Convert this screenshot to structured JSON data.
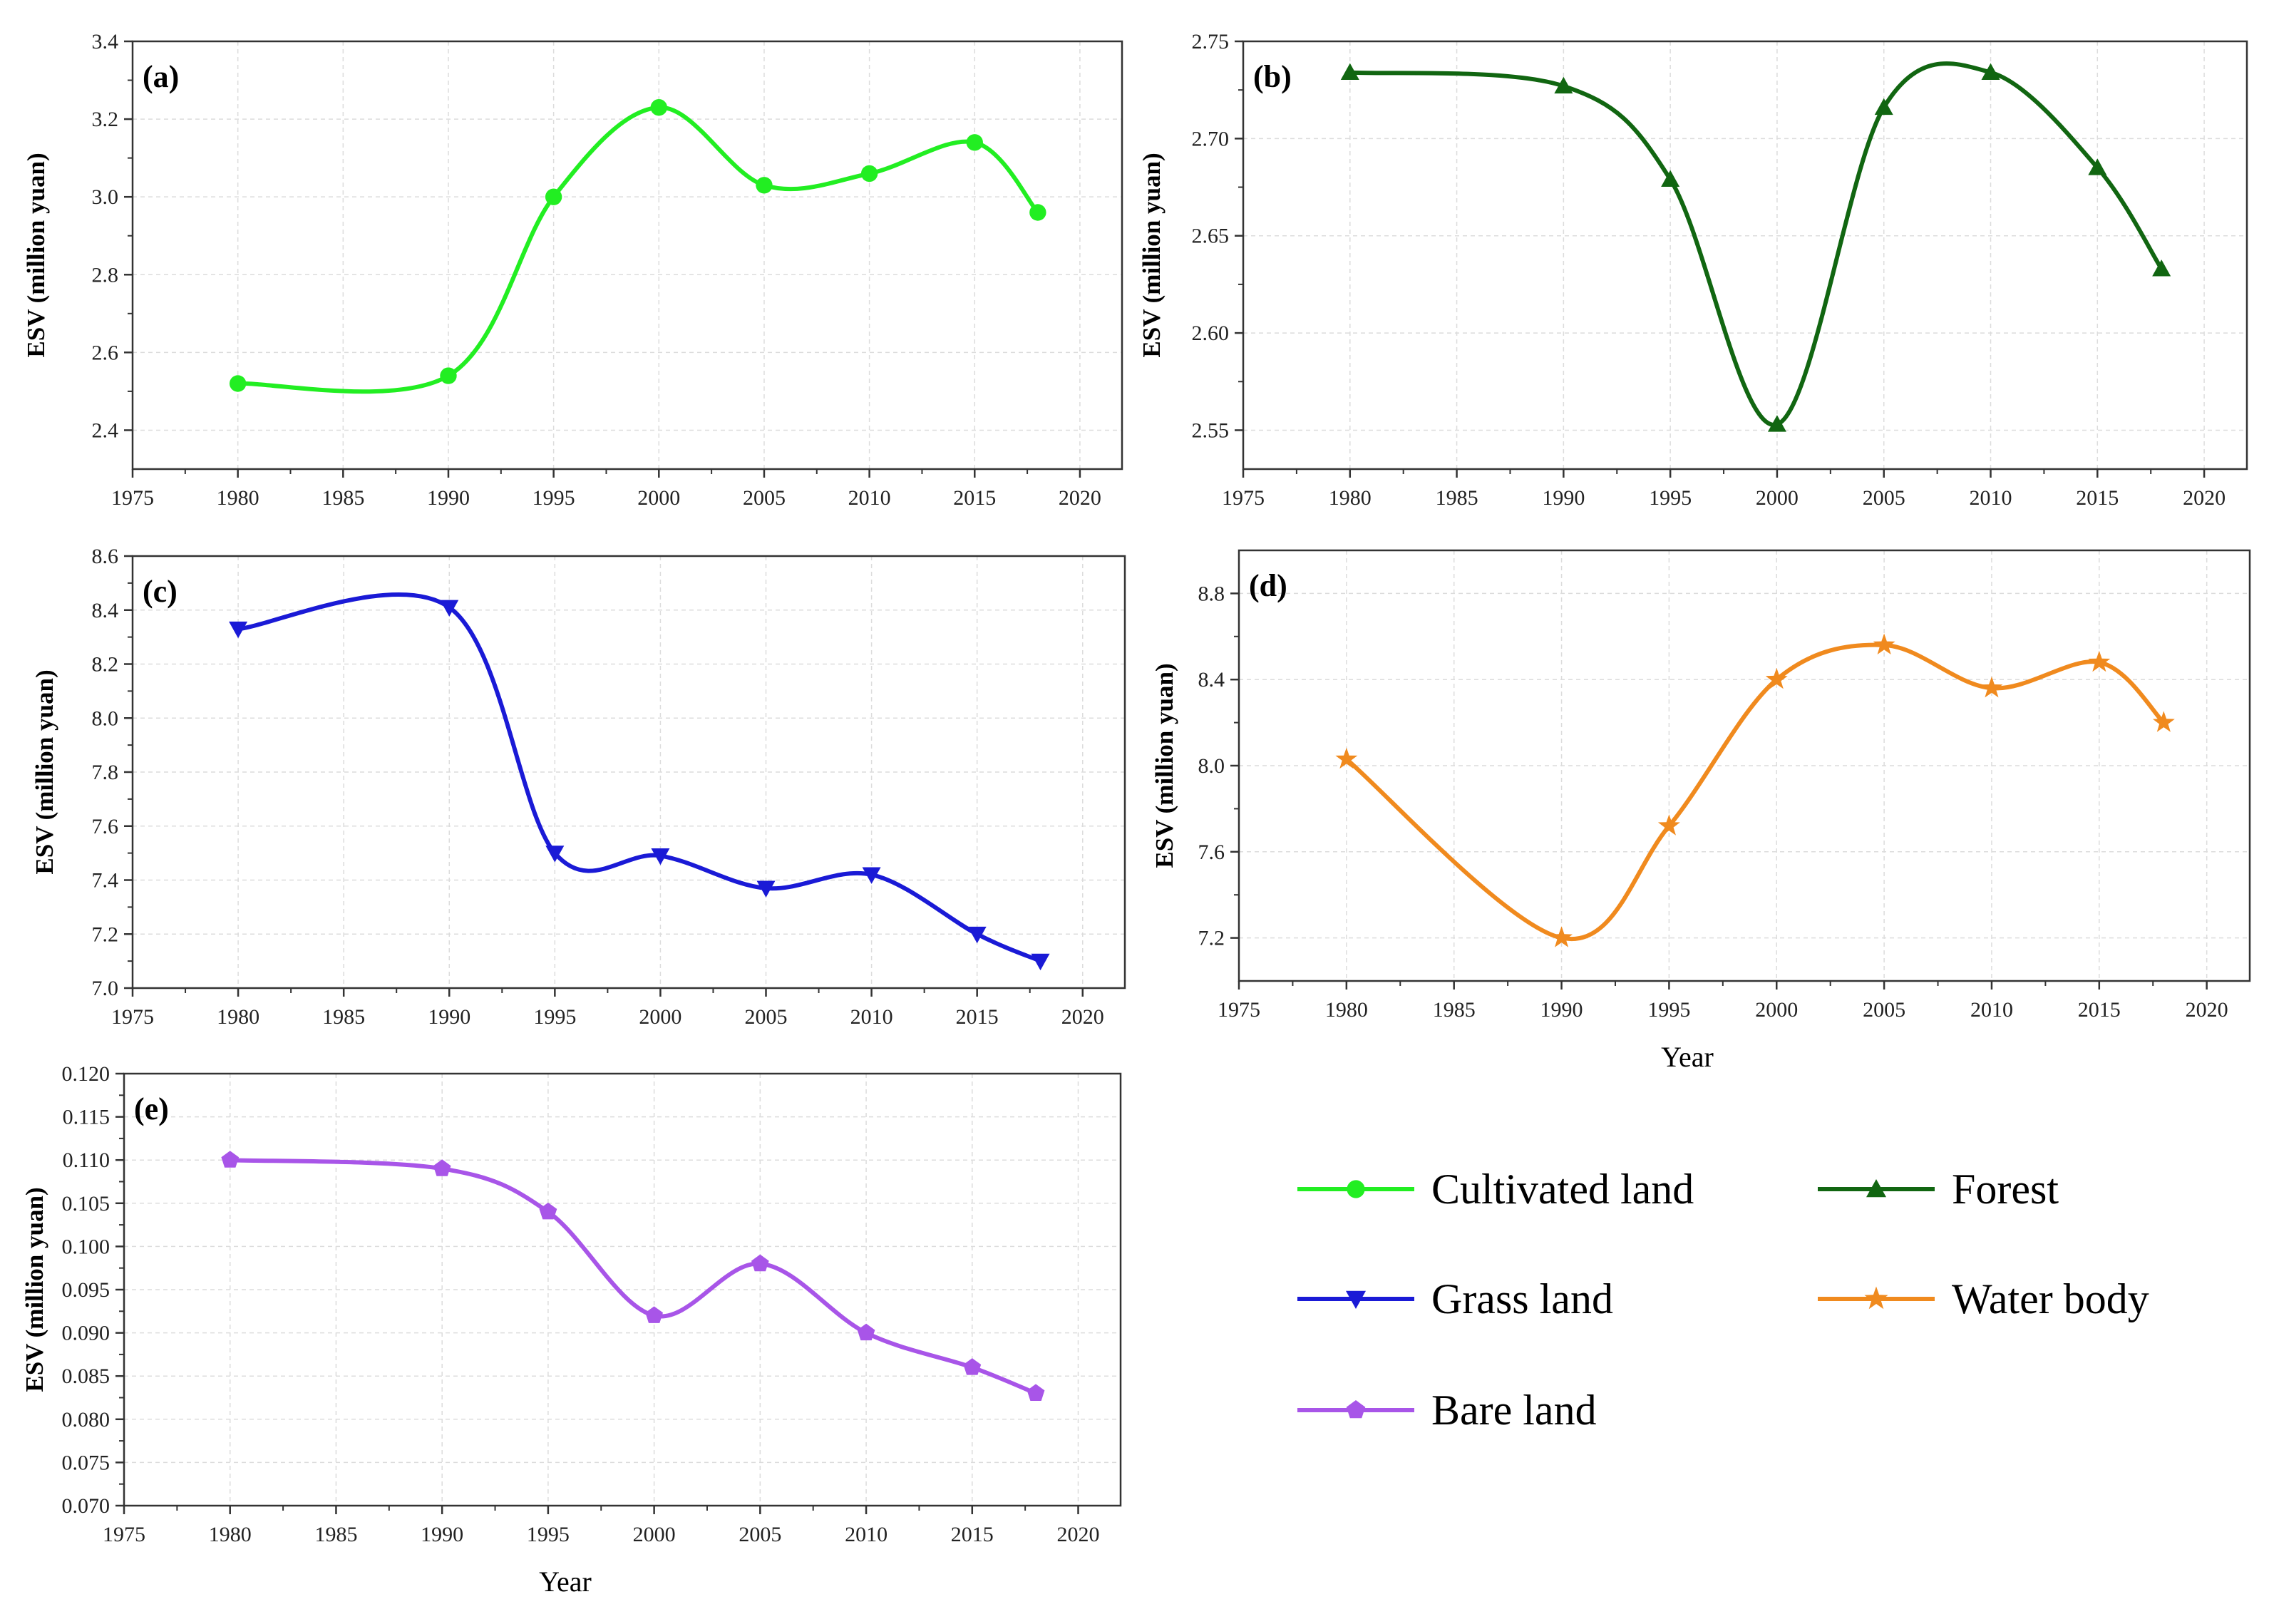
{
  "chart_data": [
    {
      "panel": "(a)",
      "type": "line",
      "series_name": "Cultivated land",
      "color": "#22ee22",
      "marker": "circle",
      "x": [
        1980,
        1990,
        1995,
        2000,
        2005,
        2010,
        2015,
        2018
      ],
      "values": [
        2.52,
        2.54,
        3.0,
        3.23,
        3.03,
        3.06,
        3.14,
        2.96
      ],
      "xlim": [
        1975,
        2022
      ],
      "ylim": [
        2.3,
        3.4
      ],
      "xticks": [
        "1975",
        "1980",
        "1985",
        "1990",
        "1995",
        "2000",
        "2005",
        "2010",
        "2015",
        "2020"
      ],
      "yticks": [
        "2.4",
        "2.6",
        "2.8",
        "3.0",
        "3.2",
        "3.4"
      ],
      "ylabel": "ESV (million yuan)",
      "xlabel": ""
    },
    {
      "panel": "(b)",
      "type": "line",
      "series_name": "Forest",
      "color": "#116611",
      "marker": "triangle-up",
      "x": [
        1980,
        1990,
        1995,
        2000,
        2005,
        2010,
        2015,
        2018
      ],
      "values": [
        2.734,
        2.727,
        2.679,
        2.553,
        2.716,
        2.734,
        2.685,
        2.633
      ],
      "xlim": [
        1975,
        2022
      ],
      "ylim": [
        2.53,
        2.75
      ],
      "xticks": [
        "1975",
        "1980",
        "1985",
        "1990",
        "1995",
        "2000",
        "2005",
        "2010",
        "2015",
        "2020"
      ],
      "yticks": [
        "2.55",
        "2.60",
        "2.65",
        "2.70",
        "2.75"
      ],
      "ylabel": "ESV (million yuan)",
      "xlabel": ""
    },
    {
      "panel": "(c)",
      "type": "line",
      "series_name": "Grass land",
      "color": "#1a1ad6",
      "marker": "triangle-down",
      "x": [
        1980,
        1990,
        1995,
        2000,
        2005,
        2010,
        2015,
        2018
      ],
      "values": [
        8.33,
        8.41,
        7.5,
        7.49,
        7.37,
        7.42,
        7.2,
        7.1
      ],
      "xlim": [
        1975,
        2022
      ],
      "ylim": [
        7.0,
        8.6
      ],
      "xticks": [
        "1975",
        "1980",
        "1985",
        "1990",
        "1995",
        "2000",
        "2005",
        "2010",
        "2015",
        "2020"
      ],
      "yticks": [
        "7.0",
        "7.2",
        "7.4",
        "7.6",
        "7.8",
        "8.0",
        "8.2",
        "8.4",
        "8.6"
      ],
      "ylabel": "ESV (million yuan)",
      "xlabel": ""
    },
    {
      "panel": "(d)",
      "type": "line",
      "series_name": "Water body",
      "color": "#f08a1e",
      "marker": "star",
      "x": [
        1980,
        1990,
        1995,
        2000,
        2005,
        2010,
        2015,
        2018
      ],
      "values": [
        8.03,
        7.2,
        7.72,
        8.4,
        8.56,
        8.36,
        8.48,
        8.2
      ],
      "xlim": [
        1975,
        2022
      ],
      "ylim": [
        7.0,
        9.0
      ],
      "xticks": [
        "1975",
        "1980",
        "1985",
        "1990",
        "1995",
        "2000",
        "2005",
        "2010",
        "2015",
        "2020"
      ],
      "yticks": [
        "7.2",
        "7.6",
        "8.0",
        "8.4",
        "8.8"
      ],
      "ylabel": "ESV (million yuan)",
      "xlabel": "Year"
    },
    {
      "panel": "(e)",
      "type": "line",
      "series_name": "Bare land",
      "color": "#a855e8",
      "marker": "pentagon",
      "x": [
        1980,
        1990,
        1995,
        2000,
        2005,
        2010,
        2015,
        2018
      ],
      "values": [
        0.11,
        0.109,
        0.104,
        0.092,
        0.098,
        0.09,
        0.086,
        0.083
      ],
      "xlim": [
        1975,
        2022
      ],
      "ylim": [
        0.07,
        0.12
      ],
      "xticks": [
        "1975",
        "1980",
        "1985",
        "1990",
        "1995",
        "2000",
        "2005",
        "2010",
        "2015",
        "2020"
      ],
      "yticks": [
        "0.070",
        "0.075",
        "0.080",
        "0.085",
        "0.090",
        "0.095",
        "0.100",
        "0.105",
        "0.110",
        "0.115",
        "0.120"
      ],
      "ylabel": "ESV (million yuan)",
      "xlabel": "Year"
    }
  ],
  "legend": [
    {
      "label": "Cultivated land",
      "color": "#22ee22",
      "marker": "circle"
    },
    {
      "label": "Forest",
      "color": "#116611",
      "marker": "triangle-up"
    },
    {
      "label": "Grass land",
      "color": "#1a1ad6",
      "marker": "triangle-down"
    },
    {
      "label": "Water body",
      "color": "#f08a1e",
      "marker": "star"
    },
    {
      "label": "Bare land",
      "color": "#a855e8",
      "marker": "pentagon"
    }
  ]
}
